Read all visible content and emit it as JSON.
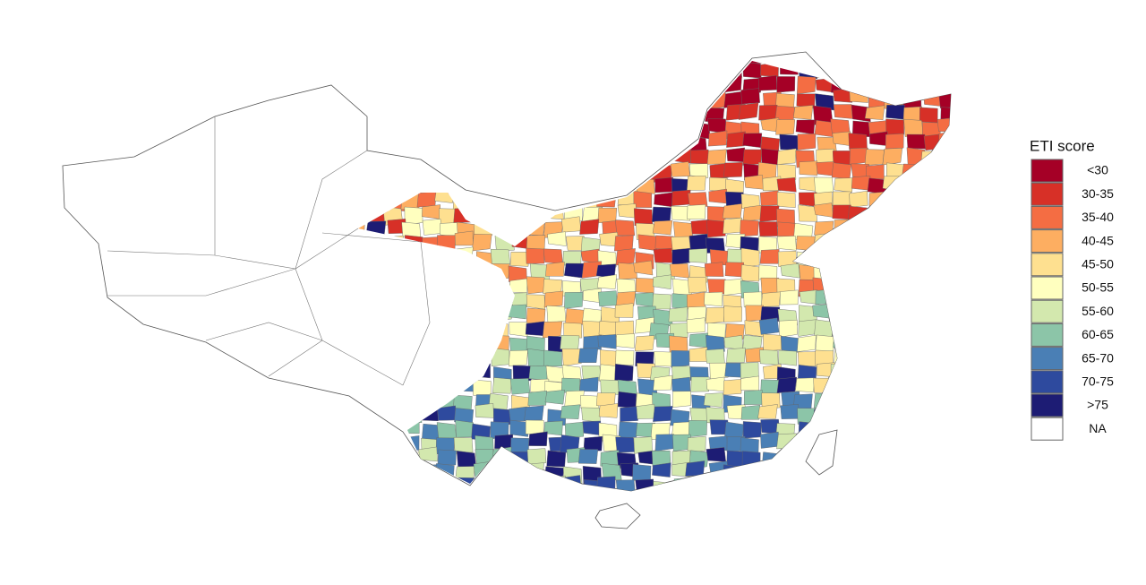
{
  "legend": {
    "title": "ETI score",
    "items": [
      {
        "label": "<30",
        "color": "#a50026"
      },
      {
        "label": "30-35",
        "color": "#d73027"
      },
      {
        "label": "35-40",
        "color": "#f46d43"
      },
      {
        "label": "40-45",
        "color": "#fdae61"
      },
      {
        "label": "45-50",
        "color": "#fee090"
      },
      {
        "label": "50-55",
        "color": "#ffffbf"
      },
      {
        "label": "55-60",
        "color": "#d3e8ae"
      },
      {
        "label": "60-65",
        "color": "#8cc5a8"
      },
      {
        "label": "65-70",
        "color": "#4a7fb5"
      },
      {
        "label": "70-75",
        "color": "#2e4a9e"
      },
      {
        "label": ">75",
        "color": "#1d1c74"
      },
      {
        "label": "NA",
        "color": "#ffffff"
      }
    ]
  }
}
